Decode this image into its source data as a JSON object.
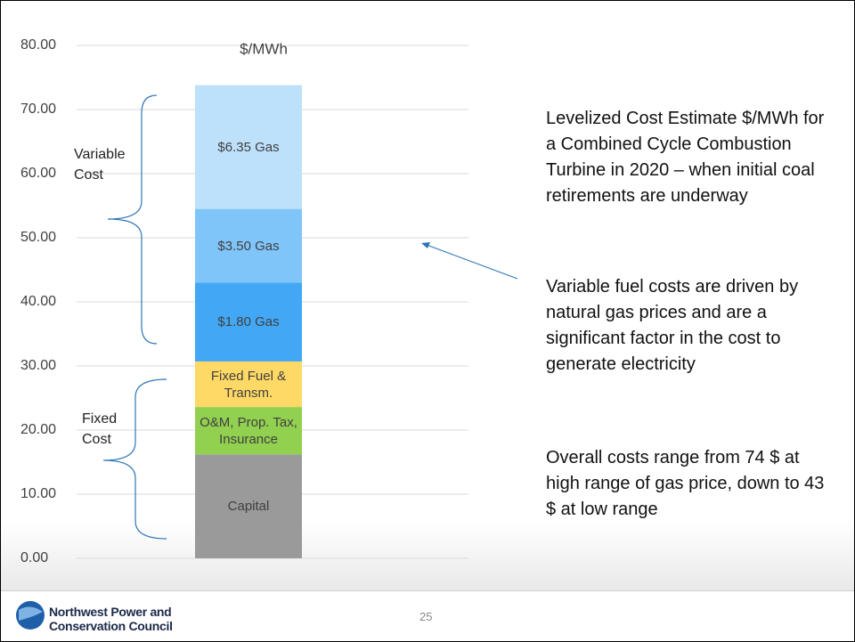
{
  "chart_data": {
    "type": "bar",
    "stacked": true,
    "title": "$/MWh",
    "categories": [
      null
    ],
    "series": [
      {
        "name": "Capital",
        "color": "#9a9a9a",
        "values": [
          16.2
        ]
      },
      {
        "name": "O&M, Prop. Tax, Insurance",
        "color": "#92d050",
        "values": [
          7.4
        ]
      },
      {
        "name": "Fixed Fuel & Transm.",
        "color": "#ffd966",
        "values": [
          7.1
        ]
      },
      {
        "name": "$1.80 Gas",
        "color": "#42a8f5",
        "values": [
          12.3
        ]
      },
      {
        "name": "$3.50 Gas",
        "color": "#80c5fa",
        "values": [
          11.5
        ]
      },
      {
        "name": "$6.35 Gas",
        "color": "#bee1fb",
        "values": [
          19.3
        ]
      }
    ],
    "ylim": [
      0,
      80
    ],
    "yticks": [
      {
        "value": 0,
        "label": "0.00"
      },
      {
        "value": 10,
        "label": "10.00"
      },
      {
        "value": 20,
        "label": "20.00"
      },
      {
        "value": 30,
        "label": "30.00"
      },
      {
        "value": 40,
        "label": "40.00"
      },
      {
        "value": 50,
        "label": "50.00"
      },
      {
        "value": 60,
        "label": "60.00"
      },
      {
        "value": 70,
        "label": "70.00"
      },
      {
        "value": 80,
        "label": "80.00"
      }
    ],
    "grid": true,
    "annotations": [
      "Variable Cost",
      "Fixed Cost"
    ]
  },
  "notes": [
    "Levelized Cost Estimate $/MWh for a Combined Cycle Combustion Turbine in 2020 – when initial coal retirements are underway",
    "Variable fuel costs are driven by natural gas prices and are a significant factor in the cost to generate electricity",
    "Overall costs range from 74 $ at high range of gas price, down to 43 $ at low range"
  ],
  "footer": {
    "logo": [
      "Northwest Power and",
      "Conservation Council"
    ],
    "page": "25"
  }
}
